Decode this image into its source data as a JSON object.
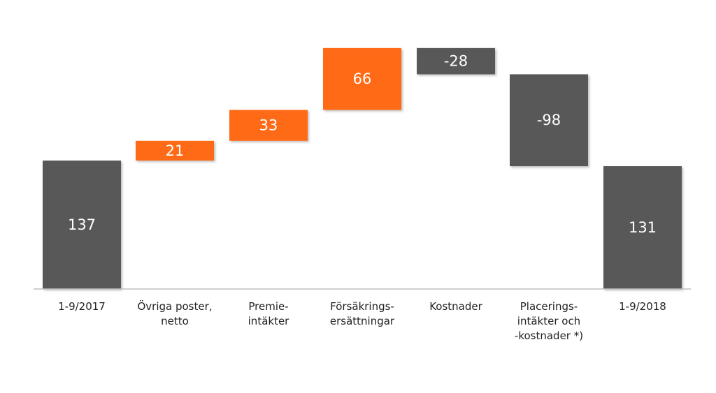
{
  "chart_data": {
    "type": "bar",
    "subtype": "waterfall",
    "title": "",
    "xlabel": "",
    "ylabel": "",
    "grid": false,
    "legend": "none",
    "categories": [
      [
        "1-9/2017"
      ],
      [
        "Övriga poster,",
        "netto"
      ],
      [
        "Premie-",
        "intäkter"
      ],
      [
        "Försäkrings-",
        "ersättningar"
      ],
      [
        "Kostnader"
      ],
      [
        "Placerings-",
        "intäkter och",
        "-kostnader *)"
      ],
      [
        "1-9/2018"
      ]
    ],
    "values": [
      137,
      21,
      33,
      66,
      -28,
      -98,
      131
    ],
    "value_labels": [
      "137",
      "21",
      "33",
      "66",
      "-28",
      "-98",
      "131"
    ],
    "bar_kinds": [
      "total",
      "delta",
      "delta",
      "delta",
      "delta",
      "delta",
      "total"
    ],
    "colors": {
      "total": "#595959",
      "increase": "#ff6a13",
      "decrease": "#595959",
      "axis": "#bfbfbf"
    }
  }
}
